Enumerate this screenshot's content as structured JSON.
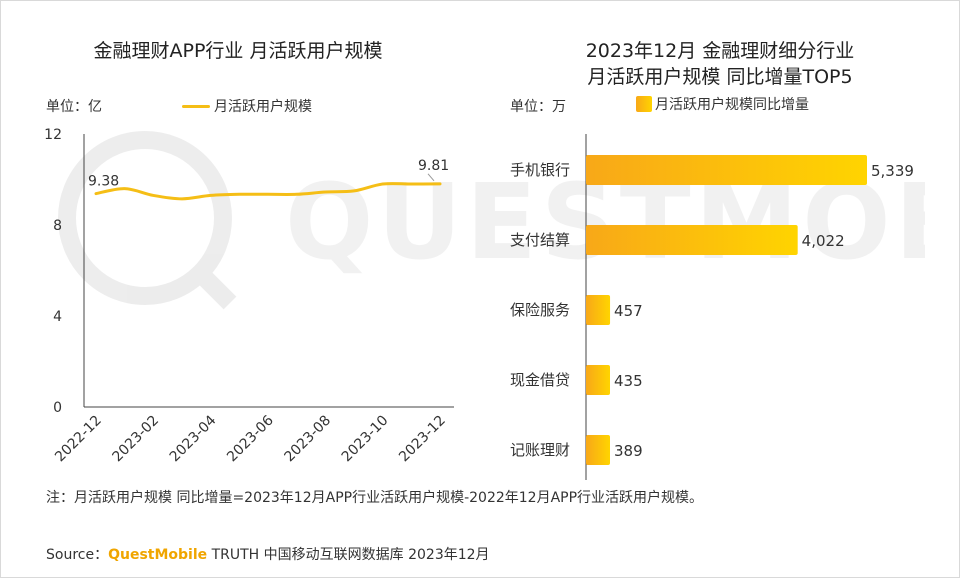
{
  "colors": {
    "accent": "#F5BE16",
    "bar_start": "#F8A818",
    "bar_end": "#FFD400",
    "axis": "#444444",
    "text": "#333333"
  },
  "watermark_text": "QUESTMOBILE",
  "left_chart": {
    "title": "金融理财APP行业 月活跃用户规模",
    "unit_label": "单位：亿",
    "legend_label": "月活跃用户规模"
  },
  "right_chart": {
    "title_line1": "2023年12月 金融理财细分行业",
    "title_line2": "月活跃用户规模 同比增量TOP5",
    "unit_label": "单位：万",
    "legend_label": "月活跃用户规模同比增量"
  },
  "note": "注：月活跃用户规模 同比增量=2023年12月APP行业活跃用户规模-2022年12月APP行业活跃用户规模。",
  "source": {
    "label": "Source：",
    "brand": "QuestMobile",
    "rest": " TRUTH 中国移动互联网数据库 2023年12月"
  },
  "chart_data": [
    {
      "type": "line",
      "title": "金融理财APP行业 月活跃用户规模",
      "ylabel": "单位：亿",
      "ylim": [
        0,
        12
      ],
      "yticks": [
        0,
        4,
        8,
        12
      ],
      "x": [
        "2022-12",
        "2023-01",
        "2023-02",
        "2023-03",
        "2023-04",
        "2023-05",
        "2023-06",
        "2023-07",
        "2023-08",
        "2023-09",
        "2023-10",
        "2023-11",
        "2023-12"
      ],
      "x_tick_labels": [
        "2022-12",
        "2023-02",
        "2023-04",
        "2023-06",
        "2023-08",
        "2023-10",
        "2023-12"
      ],
      "series": [
        {
          "name": "月活跃用户规模",
          "values": [
            9.38,
            9.6,
            9.3,
            9.15,
            9.3,
            9.35,
            9.35,
            9.35,
            9.45,
            9.5,
            9.8,
            9.8,
            9.81
          ]
        }
      ],
      "data_labels": [
        {
          "index": 0,
          "text": "9.38"
        },
        {
          "index": 12,
          "text": "9.81"
        }
      ],
      "grid": false
    },
    {
      "type": "bar",
      "orientation": "horizontal",
      "title": "2023年12月 金融理财细分行业 月活跃用户规模 同比增量TOP5",
      "ylabel": "单位：万",
      "categories": [
        "手机银行",
        "支付结算",
        "保险服务",
        "现金借贷",
        "记账理财"
      ],
      "series": [
        {
          "name": "月活跃用户规模同比增量",
          "values": [
            5339,
            4022,
            457,
            435,
            389
          ]
        }
      ],
      "value_labels": [
        "5,339",
        "4,022",
        "457",
        "435",
        "389"
      ],
      "xlim": [
        0,
        5339
      ],
      "grid": false
    }
  ]
}
